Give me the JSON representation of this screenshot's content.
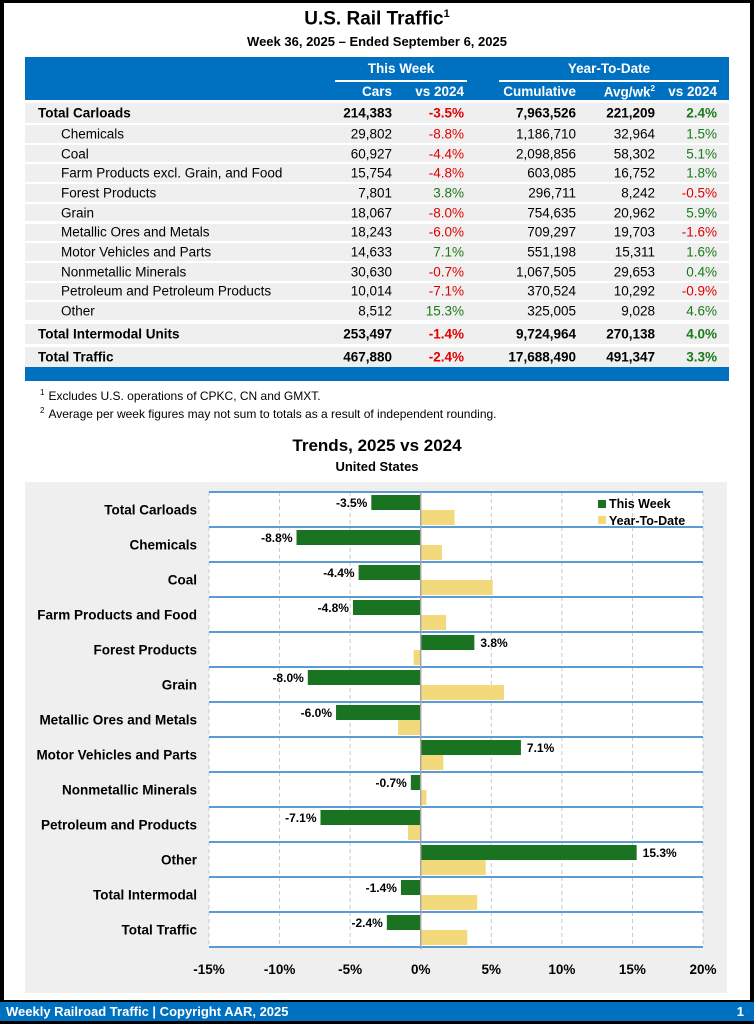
{
  "header": {
    "title": "U.S. Rail Traffic",
    "title_footnote": "1",
    "subtitle": "Week 36, 2025 – Ended September 6, 2025"
  },
  "table": {
    "groups": {
      "this_week": "This Week",
      "ytd": "Year-To-Date"
    },
    "columns": {
      "cars": "Cars",
      "tw_vs": "vs 2024",
      "cumulative": "Cumulative",
      "avg": "Avg/wk",
      "avg_footnote": "2",
      "ytd_vs": "vs 2024"
    },
    "rows": [
      {
        "label": "Total Carloads",
        "cars": "214,383",
        "tw_vs": "-3.5%",
        "cumulative": "7,963,526",
        "avg": "221,209",
        "ytd_vs": "2.4%",
        "level": "total"
      },
      {
        "label": "Chemicals",
        "cars": "29,802",
        "tw_vs": "-8.8%",
        "cumulative": "1,186,710",
        "avg": "32,964",
        "ytd_vs": "1.5%",
        "level": "sub"
      },
      {
        "label": "Coal",
        "cars": "60,927",
        "tw_vs": "-4.4%",
        "cumulative": "2,098,856",
        "avg": "58,302",
        "ytd_vs": "5.1%",
        "level": "sub"
      },
      {
        "label": "Farm Products excl. Grain, and Food",
        "cars": "15,754",
        "tw_vs": "-4.8%",
        "cumulative": "603,085",
        "avg": "16,752",
        "ytd_vs": "1.8%",
        "level": "sub"
      },
      {
        "label": "Forest Products",
        "cars": "7,801",
        "tw_vs": "3.8%",
        "cumulative": "296,711",
        "avg": "8,242",
        "ytd_vs": "-0.5%",
        "level": "sub"
      },
      {
        "label": "Grain",
        "cars": "18,067",
        "tw_vs": "-8.0%",
        "cumulative": "754,635",
        "avg": "20,962",
        "ytd_vs": "5.9%",
        "level": "sub"
      },
      {
        "label": "Metallic Ores and Metals",
        "cars": "18,243",
        "tw_vs": "-6.0%",
        "cumulative": "709,297",
        "avg": "19,703",
        "ytd_vs": "-1.6%",
        "level": "sub"
      },
      {
        "label": "Motor Vehicles and Parts",
        "cars": "14,633",
        "tw_vs": "7.1%",
        "cumulative": "551,198",
        "avg": "15,311",
        "ytd_vs": "1.6%",
        "level": "sub"
      },
      {
        "label": "Nonmetallic Minerals",
        "cars": "30,630",
        "tw_vs": "-0.7%",
        "cumulative": "1,067,505",
        "avg": "29,653",
        "ytd_vs": "0.4%",
        "level": "sub"
      },
      {
        "label": "Petroleum and Petroleum Products",
        "cars": "10,014",
        "tw_vs": "-7.1%",
        "cumulative": "370,524",
        "avg": "10,292",
        "ytd_vs": "-0.9%",
        "level": "sub"
      },
      {
        "label": "Other",
        "cars": "8,512",
        "tw_vs": "15.3%",
        "cumulative": "325,005",
        "avg": "9,028",
        "ytd_vs": "4.6%",
        "level": "sub"
      },
      {
        "label": "Total Intermodal Units",
        "cars": "253,497",
        "tw_vs": "-1.4%",
        "cumulative": "9,724,964",
        "avg": "270,138",
        "ytd_vs": "4.0%",
        "level": "total"
      },
      {
        "label": "Total Traffic",
        "cars": "467,880",
        "tw_vs": "-2.4%",
        "cumulative": "17,688,490",
        "avg": "491,347",
        "ytd_vs": "3.3%",
        "level": "total"
      }
    ]
  },
  "notes": [
    {
      "mark": "1",
      "text": "Excludes U.S. operations of CPKC, CN and GMXT."
    },
    {
      "mark": "2",
      "text": "Average per week figures may not sum to totals as a result of independent rounding."
    }
  ],
  "colors": {
    "brand_blue": "#0070c0",
    "negative": "#e00000",
    "positive": "#1a7a1a",
    "this_week_bar": "#1a7320",
    "ytd_bar": "#f2d97c"
  },
  "chart_data": {
    "type": "bar",
    "orientation": "horizontal",
    "title": "Trends, 2025 vs 2024",
    "subtitle": "United States",
    "categories": [
      "Total Carloads",
      "Chemicals",
      "Coal",
      "Farm Products and Food",
      "Forest Products",
      "Grain",
      "Metallic Ores and Metals",
      "Motor Vehicles and Parts",
      "Nonmetallic Minerals",
      "Petroleum and Products",
      "Other",
      "Total Intermodal",
      "Total Traffic"
    ],
    "series": [
      {
        "name": "This Week",
        "values": [
          -3.5,
          -8.8,
          -4.4,
          -4.8,
          3.8,
          -8.0,
          -6.0,
          7.1,
          -0.7,
          -7.1,
          15.3,
          -1.4,
          -2.4
        ],
        "data_labels": [
          "-3.5%",
          "-8.8%",
          "-4.4%",
          "-4.8%",
          "3.8%",
          "-8.0%",
          "-6.0%",
          "7.1%",
          "-0.7%",
          "-7.1%",
          "15.3%",
          "-1.4%",
          "-2.4%"
        ]
      },
      {
        "name": "Year-To-Date",
        "values": [
          2.4,
          1.5,
          5.1,
          1.8,
          -0.5,
          5.9,
          -1.6,
          1.6,
          0.4,
          -0.9,
          4.6,
          4.0,
          3.3
        ]
      }
    ],
    "xlim": [
      -15,
      20
    ],
    "xticks": [
      -15,
      -10,
      -5,
      0,
      5,
      10,
      15,
      20
    ],
    "xtick_labels": [
      "-15%",
      "-10%",
      "-5%",
      "0%",
      "5%",
      "10%",
      "15%",
      "20%"
    ],
    "xlabel": "",
    "ylabel": "",
    "grid": "vertical dashed",
    "legend": "top-right"
  },
  "footer": {
    "text": "Weekly Railroad Traffic | Copyright AAR, 2025",
    "page": "1"
  }
}
